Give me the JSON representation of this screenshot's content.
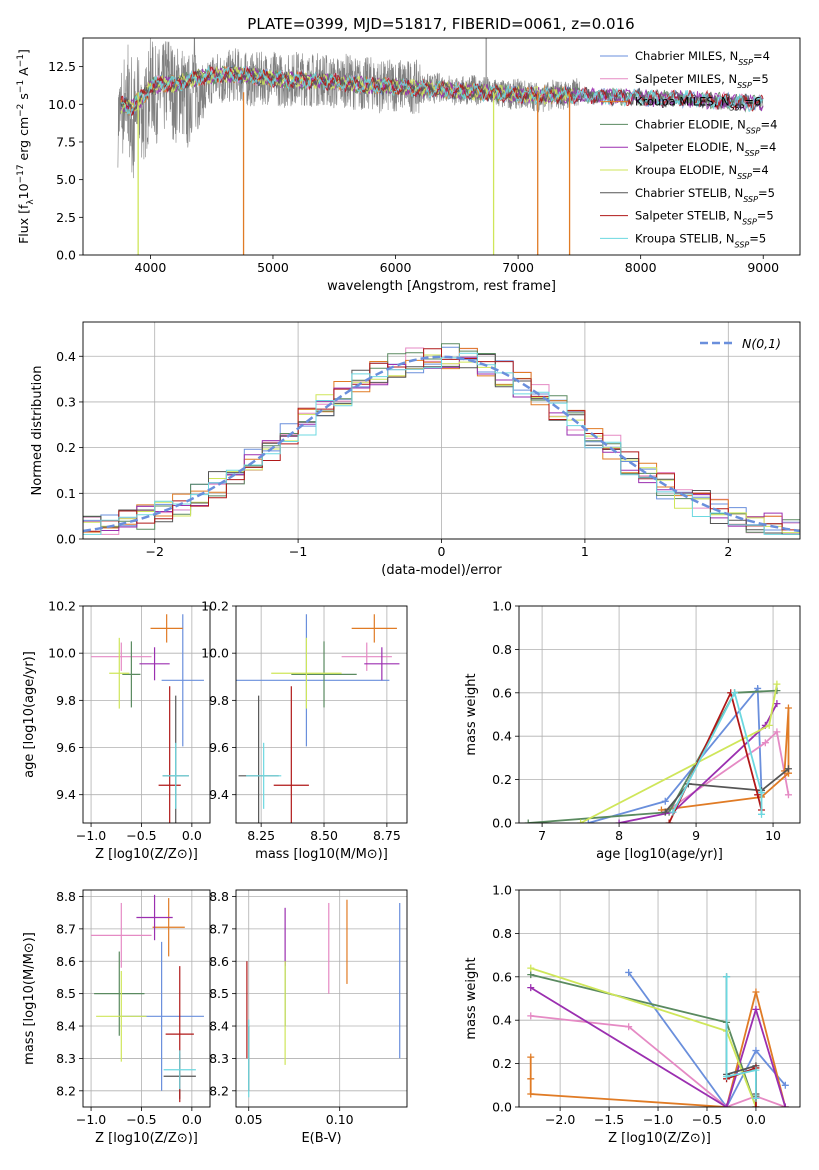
{
  "title": "PLATE=0399, MJD=51817, FIBERID=0061, z=0.016",
  "colors": {
    "chabrier_miles": "#6a8fdc",
    "salpeter_miles": "#e58ac4",
    "kroupa_miles": "#e07b25",
    "chabrier_elodie": "#5a8a60",
    "salpeter_elodie": "#9b2fb0",
    "kroupa_elodie": "#cfe65a",
    "chabrier_stelib": "#555555",
    "salpeter_stelib": "#b01818",
    "kroupa_stelib": "#6cd8e0",
    "data": "#808080"
  },
  "chart_data": [
    {
      "type": "line",
      "panel": "spectrum",
      "title": "PLATE=0399, MJD=51817, FIBERID=0061, z=0.016",
      "xlabel": "wavelength [Angstrom, rest frame]",
      "ylabel_parts": [
        "Flux [f",
        "λ",
        "10",
        "−17",
        " erg cm",
        "−2",
        " s",
        "−1",
        " A",
        "−1",
        "]"
      ],
      "xlim": [
        3450,
        9300
      ],
      "ylim": [
        0,
        14.4
      ],
      "xticks": [
        "4000",
        "5000",
        "6000",
        "7000",
        "8000",
        "9000"
      ],
      "yticks": [
        "0.0",
        "2.5",
        "5.0",
        "7.5",
        "10.0",
        "12.5"
      ],
      "legend_position": "upper right",
      "legend": [
        {
          "name": "Chabrier MILES, N",
          "sub": "SSP",
          "tail": "=4",
          "color": "#6a8fdc"
        },
        {
          "name": "Salpeter MILES, N",
          "sub": "SSP",
          "tail": "=5",
          "color": "#e58ac4"
        },
        {
          "name": "Kroupa MILES, N",
          "sub": "SSP",
          "tail": "=6",
          "color": "#e07b25"
        },
        {
          "name": "Chabrier ELODIE, N",
          "sub": "SSP",
          "tail": "=4",
          "color": "#5a8a60"
        },
        {
          "name": "Salpeter ELODIE, N",
          "sub": "SSP",
          "tail": "=4",
          "color": "#9b2fb0"
        },
        {
          "name": "Kroupa ELODIE, N",
          "sub": "SSP",
          "tail": "=4",
          "color": "#cfe65a"
        },
        {
          "name": "Chabrier STELIB, N",
          "sub": "SSP",
          "tail": "=5",
          "color": "#555555"
        },
        {
          "name": "Salpeter STELIB, N",
          "sub": "SSP",
          "tail": "=5",
          "color": "#b01818"
        },
        {
          "name": "Kroupa STELIB, N",
          "sub": "SSP",
          "tail": "=5",
          "color": "#6cd8e0"
        }
      ],
      "data_spectrum": {
        "wavelength": [
          3750,
          3800,
          3850,
          3900,
          3950,
          4000,
          4050,
          4100,
          4150,
          4200,
          4250,
          4300,
          4350,
          4400,
          4450,
          4500,
          4600,
          4700,
          4800,
          4900,
          5000,
          5100,
          5200,
          5300,
          5400,
          5500,
          5600,
          5700,
          5800,
          5900,
          6000,
          6100,
          6200,
          6300,
          6400,
          6500,
          6600,
          6700,
          6800,
          6900,
          7000,
          7100,
          7200,
          7300,
          7400,
          7500,
          7600,
          7700,
          7800,
          7900,
          8000,
          8100,
          8200,
          8300,
          8400,
          8500,
          8600,
          8700,
          8800,
          8900,
          9000
        ],
        "flux": [
          9.0,
          10.8,
          8.5,
          10.2,
          9.0,
          11.4,
          10.6,
          10.8,
          11.8,
          10.4,
          11.2,
          9.8,
          11.5,
          11.0,
          10.6,
          11.8,
          11.7,
          12.0,
          11.6,
          11.7,
          11.8,
          11.5,
          11.8,
          11.6,
          11.7,
          11.4,
          11.6,
          11.3,
          11.4,
          11.1,
          11.3,
          11.2,
          11.1,
          11.0,
          11.2,
          10.8,
          11.0,
          10.9,
          10.8,
          10.6,
          10.7,
          10.6,
          10.4,
          10.7,
          10.6,
          10.8,
          10.5,
          10.6,
          10.7,
          10.5,
          10.6,
          10.3,
          10.5,
          10.4,
          10.3,
          10.2,
          10.3,
          10.1,
          10.2,
          10.1,
          10.1
        ]
      },
      "model_spectrum": {
        "wavelength": [
          3750,
          3850,
          3950,
          4000,
          4100,
          4200,
          4300,
          4400,
          4500,
          4700,
          4900,
          5100,
          5300,
          5500,
          5700,
          5900,
          6100,
          6300,
          6500,
          6700,
          6900,
          7100,
          7300,
          7500,
          7700,
          7900,
          8100,
          8300,
          8500,
          8700,
          8900,
          9000
        ],
        "flux": [
          10.0,
          9.8,
          10.6,
          11.2,
          11.4,
          11.3,
          11.6,
          11.8,
          11.9,
          12.0,
          11.8,
          11.6,
          11.6,
          11.5,
          11.3,
          11.2,
          11.1,
          11.0,
          10.9,
          10.8,
          10.7,
          10.6,
          10.6,
          10.6,
          10.5,
          10.5,
          10.4,
          10.4,
          10.3,
          10.2,
          10.1,
          10.1
        ]
      },
      "model_dropouts": [
        {
          "wavelength": 4760,
          "color": "#e07b25"
        },
        {
          "wavelength": 3900,
          "color": "#cfe65a"
        },
        {
          "wavelength": 6800,
          "color": "#cfe65a"
        },
        {
          "wavelength": 7420,
          "color": "#e07b25"
        },
        {
          "wavelength": 7160,
          "color": "#e07b25"
        }
      ]
    },
    {
      "type": "line",
      "panel": "residual_histogram",
      "xlabel": "(data-model)/error",
      "ylabel": "Normed distribution",
      "xlim": [
        -2.5,
        2.5
      ],
      "ylim": [
        0,
        0.475
      ],
      "xticks": [
        "−2",
        "−1",
        "0",
        "1",
        "2"
      ],
      "yticks": [
        "0.0",
        "0.1",
        "0.2",
        "0.3",
        "0.4"
      ],
      "legend_position": "upper right",
      "legend": [
        {
          "name": "N(0,1)",
          "color": "#6a8fdc"
        }
      ],
      "gaussian": {
        "mean": 0,
        "sigma": 1
      }
    },
    {
      "type": "scatter",
      "panel": "age_vs_Z",
      "xlabel": "Z [log10(Z/Z⊙)]",
      "ylabel": "age  [log10(age/yr)]",
      "xlim": [
        -1.08,
        0.18
      ],
      "ylim": [
        9.28,
        10.2
      ],
      "xticks": [
        "−1.0",
        "−0.5",
        "0.0"
      ],
      "yticks": [
        "9.4",
        "9.6",
        "9.8",
        "10.0",
        "10.2"
      ],
      "points": [
        {
          "x": -0.09,
          "y": 9.885,
          "xerr": 0.21,
          "yerr": 0.28,
          "color": "#6a8fdc"
        },
        {
          "x": -0.7,
          "y": 9.985,
          "xerr": 0.3,
          "yerr": 0.06,
          "color": "#e58ac4"
        },
        {
          "x": -0.25,
          "y": 10.105,
          "xerr": 0.16,
          "yerr": 0.06,
          "color": "#e07b25"
        },
        {
          "x": -0.6,
          "y": 9.91,
          "xerr": 0.09,
          "yerr": 0.14,
          "color": "#5a8a60"
        },
        {
          "x": -0.37,
          "y": 9.955,
          "xerr": 0.15,
          "yerr": 0.07,
          "color": "#9b2fb0"
        },
        {
          "x": -0.72,
          "y": 9.915,
          "xerr": 0.1,
          "yerr": 0.15,
          "color": "#cfe65a"
        },
        {
          "x": -0.16,
          "y": 9.48,
          "xerr": 0.13,
          "yerr": 0.34,
          "color": "#555555"
        },
        {
          "x": -0.22,
          "y": 9.44,
          "xerr": 0.11,
          "yerr": 0.42,
          "color": "#b01818"
        },
        {
          "x": -0.16,
          "y": 9.48,
          "xerr": 0.13,
          "yerr": 0.14,
          "color": "#6cd8e0"
        }
      ]
    },
    {
      "type": "scatter",
      "panel": "age_vs_mass",
      "xlabel": "mass [log10(M/M⊙)]",
      "ylabel": "",
      "xlim": [
        8.15,
        8.83
      ],
      "ylim": [
        9.28,
        10.2
      ],
      "xticks": [
        "8.25",
        "8.50",
        "8.75"
      ],
      "yticks": [
        "9.4",
        "9.6",
        "9.8",
        "10.0",
        "10.2"
      ],
      "points": [
        {
          "x": 8.43,
          "y": 9.885,
          "xerr": 0.33,
          "yerr": 0.28,
          "color": "#6a8fdc"
        },
        {
          "x": 8.67,
          "y": 9.985,
          "xerr": 0.1,
          "yerr": 0.06,
          "color": "#e58ac4"
        },
        {
          "x": 8.7,
          "y": 10.105,
          "xerr": 0.09,
          "yerr": 0.06,
          "color": "#e07b25"
        },
        {
          "x": 8.5,
          "y": 9.91,
          "xerr": 0.13,
          "yerr": 0.14,
          "color": "#5a8a60"
        },
        {
          "x": 8.73,
          "y": 9.955,
          "xerr": 0.07,
          "yerr": 0.07,
          "color": "#9b2fb0"
        },
        {
          "x": 8.43,
          "y": 9.915,
          "xerr": 0.14,
          "yerr": 0.15,
          "color": "#cfe65a"
        },
        {
          "x": 8.24,
          "y": 9.48,
          "xerr": 0.08,
          "yerr": 0.34,
          "color": "#555555"
        },
        {
          "x": 8.37,
          "y": 9.44,
          "xerr": 0.07,
          "yerr": 0.42,
          "color": "#b01818"
        },
        {
          "x": 8.26,
          "y": 9.48,
          "xerr": 0.07,
          "yerr": 0.14,
          "color": "#6cd8e0"
        }
      ]
    },
    {
      "type": "line",
      "panel": "massweight_vs_age",
      "xlabel": "age  [log10(age/yr)]",
      "ylabel": "mass weight",
      "xlim": [
        6.7,
        10.35
      ],
      "ylim": [
        0,
        1.0
      ],
      "xticks": [
        "7",
        "8",
        "9",
        "10"
      ],
      "yticks": [
        "0.0",
        "0.2",
        "0.4",
        "0.6",
        "0.8",
        "1.0"
      ],
      "series": [
        {
          "color": "#6a8fdc",
          "x": [
            7.6,
            8.6,
            9.8,
            9.85
          ],
          "y": [
            0.0,
            0.1,
            0.62,
            0.14
          ]
        },
        {
          "color": "#e58ac4",
          "x": [
            8.6,
            9.9,
            10.05,
            10.2
          ],
          "y": [
            0.05,
            0.37,
            0.42,
            0.13
          ]
        },
        {
          "color": "#e07b25",
          "x": [
            8.55,
            9.85,
            10.2,
            10.2,
            10.2,
            10.15
          ],
          "y": [
            0.06,
            0.12,
            0.23,
            0.23,
            0.53,
            0.24
          ]
        },
        {
          "color": "#5a8a60",
          "x": [
            6.82,
            8.65,
            9.5,
            10.05
          ],
          "y": [
            0.0,
            0.05,
            0.6,
            0.61
          ]
        },
        {
          "color": "#9b2fb0",
          "x": [
            8.0,
            8.7,
            9.9,
            10.05
          ],
          "y": [
            0.0,
            0.05,
            0.45,
            0.55
          ]
        },
        {
          "color": "#cfe65a",
          "x": [
            7.5,
            9.95,
            10.05
          ],
          "y": [
            0.0,
            0.45,
            0.64
          ]
        },
        {
          "color": "#555555",
          "x": [
            8.6,
            8.9,
            9.85,
            10.2
          ],
          "y": [
            0.05,
            0.18,
            0.15,
            0.25
          ]
        },
        {
          "color": "#b01818",
          "x": [
            8.65,
            9.45,
            9.8,
            9.85
          ],
          "y": [
            0.0,
            0.6,
            0.13,
            0.06
          ]
        },
        {
          "color": "#6cd8e0",
          "x": [
            8.7,
            9.5,
            9.85,
            9.85
          ],
          "y": [
            0.05,
            0.6,
            0.14,
            0.04
          ]
        }
      ]
    },
    {
      "type": "scatter",
      "panel": "mass_vs_Z",
      "xlabel": "Z [log10(Z/Z⊙)]",
      "ylabel": "mass [log10(M/M⊙)]",
      "xlim": [
        -1.08,
        0.18
      ],
      "ylim": [
        8.15,
        8.82
      ],
      "xticks": [
        "−1.0",
        "−0.5",
        "0.0"
      ],
      "yticks": [
        "8.2",
        "8.3",
        "8.4",
        "8.5",
        "8.6",
        "8.7",
        "8.8"
      ],
      "points": [
        {
          "x": -0.3,
          "y": 8.43,
          "xerr": 0.42,
          "yerr": 0.23,
          "color": "#6a8fdc"
        },
        {
          "x": -0.7,
          "y": 8.68,
          "xerr": 0.3,
          "yerr": 0.1,
          "color": "#e58ac4"
        },
        {
          "x": -0.23,
          "y": 8.705,
          "xerr": 0.16,
          "yerr": 0.09,
          "color": "#e07b25"
        },
        {
          "x": -0.72,
          "y": 8.5,
          "xerr": 0.25,
          "yerr": 0.13,
          "color": "#5a8a60"
        },
        {
          "x": -0.37,
          "y": 8.735,
          "xerr": 0.18,
          "yerr": 0.07,
          "color": "#9b2fb0"
        },
        {
          "x": -0.7,
          "y": 8.43,
          "xerr": 0.25,
          "yerr": 0.14,
          "color": "#cfe65a"
        },
        {
          "x": -0.12,
          "y": 8.245,
          "xerr": 0.16,
          "yerr": 0.07,
          "color": "#555555"
        },
        {
          "x": -0.12,
          "y": 8.375,
          "xerr": 0.14,
          "yerr": 0.21,
          "color": "#b01818"
        },
        {
          "x": -0.12,
          "y": 8.265,
          "xerr": 0.16,
          "yerr": 0.06,
          "color": "#6cd8e0"
        }
      ]
    },
    {
      "type": "scatter",
      "panel": "mass_vs_EBV",
      "xlabel": "E(B-V)",
      "ylabel": "",
      "xlim": [
        0.043,
        0.137
      ],
      "ylim": [
        8.15,
        8.82
      ],
      "xticks": [
        "0.05",
        "0.10"
      ],
      "yticks": [
        "8.2",
        "8.3",
        "8.4",
        "8.5",
        "8.6",
        "8.7",
        "8.8"
      ],
      "points": [
        {
          "x": 0.133,
          "y": 8.54,
          "yerr": 0.24,
          "color": "#6a8fdc"
        },
        {
          "x": 0.094,
          "y": 8.64,
          "yerr": 0.14,
          "color": "#e58ac4"
        },
        {
          "x": 0.104,
          "y": 8.66,
          "yerr": 0.13,
          "color": "#e07b25"
        },
        {
          "x": 0.07,
          "y": 8.5,
          "yerr": 0.1,
          "color": "#5a8a60"
        },
        {
          "x": 0.07,
          "y": 8.675,
          "yerr": 0.09,
          "color": "#9b2fb0"
        },
        {
          "x": 0.07,
          "y": 8.44,
          "yerr": 0.16,
          "color": "#cfe65a"
        },
        {
          "x": 0.05,
          "y": 8.3,
          "yerr": 0.1,
          "color": "#555555"
        },
        {
          "x": 0.049,
          "y": 8.45,
          "yerr": 0.15,
          "color": "#b01818"
        },
        {
          "x": 0.05,
          "y": 8.3,
          "yerr": 0.12,
          "color": "#6cd8e0"
        }
      ]
    },
    {
      "type": "line",
      "panel": "massweight_vs_Z",
      "xlabel": "Z [log10(Z/Z⊙)]",
      "ylabel": "mass weight",
      "xlim": [
        -2.42,
        0.45
      ],
      "ylim": [
        0,
        1.0
      ],
      "xticks": [
        "−2.0",
        "−1.5",
        "−1.0",
        "−0.5",
        "0.0"
      ],
      "yticks": [
        "0.0",
        "0.2",
        "0.4",
        "0.6",
        "0.8",
        "1.0"
      ],
      "series": [
        {
          "color": "#6a8fdc",
          "x": [
            -1.3,
            -0.3,
            0.0,
            0.3
          ],
          "y": [
            0.62,
            0.0,
            0.26,
            0.1
          ]
        },
        {
          "color": "#e58ac4",
          "x": [
            -2.3,
            -1.3,
            -0.3,
            0.0,
            0.3
          ],
          "y": [
            0.42,
            0.37,
            0.0,
            0.05,
            0.0
          ]
        },
        {
          "color": "#e07b25",
          "x": [
            -2.3,
            -2.3,
            -2.3,
            -0.3,
            0.0,
            0.3
          ],
          "y": [
            0.23,
            0.13,
            0.06,
            0.0,
            0.53,
            0.0
          ]
        },
        {
          "color": "#5a8a60",
          "x": [
            -2.3,
            -0.3,
            0.0,
            0.0
          ],
          "y": [
            0.61,
            0.39,
            0.0,
            0.05
          ]
        },
        {
          "color": "#9b2fb0",
          "x": [
            -2.3,
            -0.3,
            0.0,
            0.3
          ],
          "y": [
            0.55,
            0.0,
            0.45,
            0.0
          ]
        },
        {
          "color": "#cfe65a",
          "x": [
            -2.3,
            -0.3,
            0.0
          ],
          "y": [
            0.64,
            0.35,
            0.0
          ]
        },
        {
          "color": "#555555",
          "x": [
            -0.3,
            -0.3,
            0.0,
            0.0
          ],
          "y": [
            0.6,
            0.15,
            0.19,
            0.06
          ]
        },
        {
          "color": "#b01818",
          "x": [
            -0.3,
            0.0,
            0.0
          ],
          "y": [
            0.13,
            0.18,
            0.0
          ]
        },
        {
          "color": "#6cd8e0",
          "x": [
            -0.3,
            -0.3,
            0.0,
            0.0
          ],
          "y": [
            0.6,
            0.14,
            0.17,
            0.04
          ]
        }
      ]
    }
  ]
}
